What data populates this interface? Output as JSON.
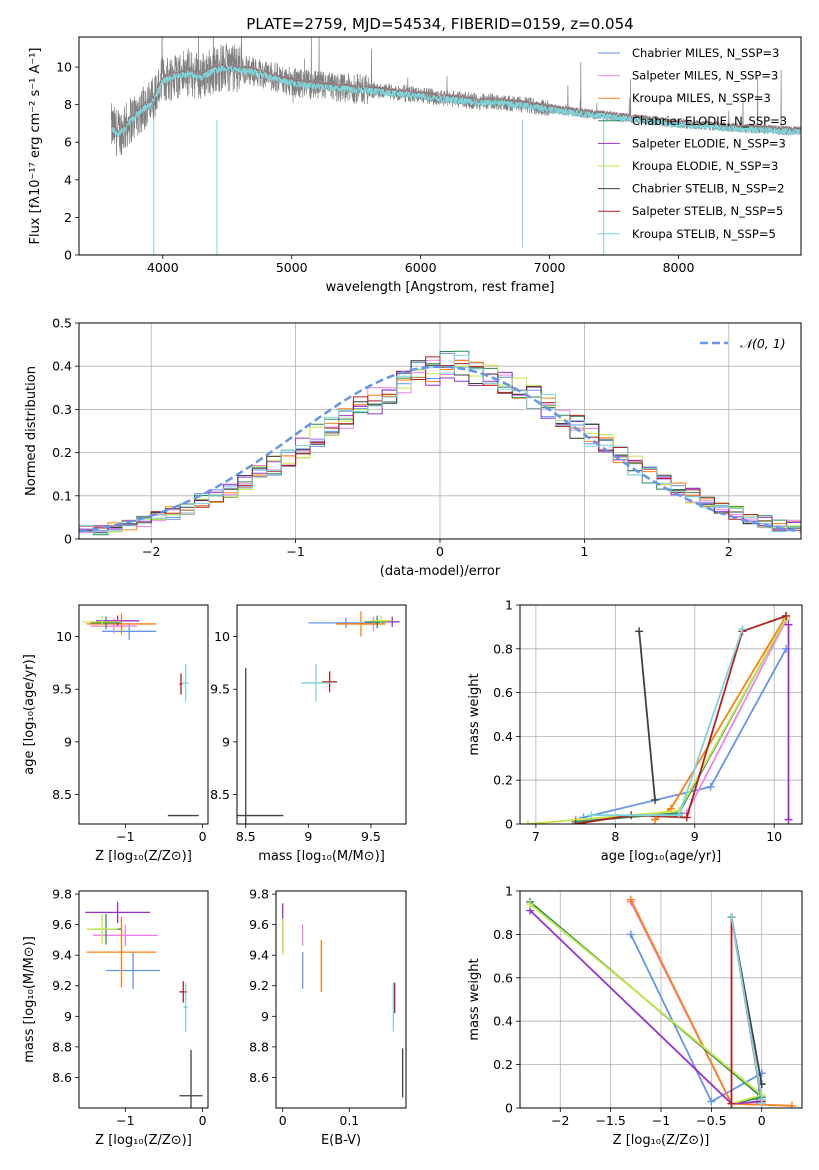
{
  "figure": {
    "title": "PLATE=2759, MJD=54534, FIBERID=0159, z=0.054"
  },
  "chart_data": [
    {
      "id": "spectrum",
      "type": "line",
      "title": "PLATE=2759, MJD=54534, FIBERID=0159, z=0.054",
      "xlabel": "wavelength [Angstrom, rest frame]",
      "ylabel": "Flux [fλ10⁻¹⁷ erg cm⁻² s⁻¹ A⁻¹]",
      "xlim": [
        3350,
        8950
      ],
      "ylim": [
        0,
        11.6
      ],
      "xticks": [
        4000,
        5000,
        6000,
        7000,
        8000
      ],
      "yticks": [
        0,
        2,
        4,
        6,
        8,
        10
      ],
      "legend": "top-right",
      "data_color": "#808080",
      "model_color": "#7fd4dc",
      "continuum": {
        "x": [
          3600,
          3650,
          3700,
          3750,
          3800,
          3850,
          3900,
          3950,
          4000,
          4100,
          4200,
          4300,
          4400,
          4500,
          4600,
          4700,
          4800,
          4900,
          5000,
          5200,
          5400,
          5600,
          5800,
          6000,
          6200,
          6400,
          6600,
          6800,
          7000,
          7200,
          7400,
          7600,
          7800,
          8000,
          8200,
          8400,
          8600,
          8800,
          8950
        ],
        "y": [
          6.8,
          6.5,
          6.7,
          7.2,
          7.5,
          7.9,
          8.0,
          8.6,
          9.3,
          9.6,
          9.7,
          9.5,
          9.9,
          10.0,
          9.9,
          9.8,
          9.6,
          9.4,
          9.2,
          9.0,
          8.9,
          8.8,
          8.65,
          8.5,
          8.35,
          8.2,
          8.15,
          8.0,
          7.8,
          7.6,
          7.45,
          7.3,
          7.15,
          7.0,
          6.9,
          6.8,
          6.7,
          6.65,
          6.6
        ]
      },
      "series": [
        {
          "name": "Chabrier MILES, N_SSP=3",
          "color": "#6495ed"
        },
        {
          "name": "Salpeter MILES, N_SSP=3",
          "color": "#ee82ee"
        },
        {
          "name": "Kroupa MILES, N_SSP=3",
          "color": "#ff7f0e"
        },
        {
          "name": "Chabrier ELODIE, N_SSP=3",
          "color": "#2e8b57"
        },
        {
          "name": "Salpeter ELODIE, N_SSP=3",
          "color": "#9932cc"
        },
        {
          "name": "Kroupa ELODIE, N_SSP=3",
          "color": "#c5e84a"
        },
        {
          "name": "Chabrier STELIB, N_SSP=2",
          "color": "#404040"
        },
        {
          "name": "Salpeter STELIB, N_SSP=5",
          "color": "#b22222"
        },
        {
          "name": "Kroupa STELIB, N_SSP=5",
          "color": "#7fd4dc"
        }
      ]
    },
    {
      "id": "residuals",
      "type": "line",
      "xlabel": "(data-model)/error",
      "ylabel": "Normed distribution",
      "xlim": [
        -2.5,
        2.5
      ],
      "ylim": [
        0,
        0.5
      ],
      "xticks": [
        -2,
        -1,
        0,
        1,
        2
      ],
      "yticks": [
        0.0,
        0.1,
        0.2,
        0.3,
        0.4,
        0.5
      ],
      "grid": true,
      "legend": "top-right",
      "reference": {
        "name": "𝒩(0, 1)",
        "color": "#6495ed",
        "style": "dashed"
      },
      "bin_width": 0.1,
      "bin_start": -2.5,
      "histogram_mean": [
        0.02,
        0.02,
        0.03,
        0.03,
        0.04,
        0.05,
        0.06,
        0.07,
        0.09,
        0.1,
        0.11,
        0.13,
        0.15,
        0.17,
        0.19,
        0.21,
        0.24,
        0.26,
        0.28,
        0.3,
        0.32,
        0.34,
        0.36,
        0.38,
        0.39,
        0.4,
        0.4,
        0.39,
        0.38,
        0.37,
        0.35,
        0.33,
        0.31,
        0.29,
        0.26,
        0.24,
        0.22,
        0.2,
        0.17,
        0.15,
        0.13,
        0.12,
        0.1,
        0.09,
        0.07,
        0.06,
        0.05,
        0.04,
        0.03,
        0.03
      ]
    },
    {
      "id": "age-vs-z",
      "type": "scatter",
      "xlabel": "Z [log₁₀(Z/Z⊙)]",
      "ylabel": "age  [log₁₀(age/yr)]",
      "xlim": [
        -1.6,
        0.07
      ],
      "ylim": [
        8.22,
        10.3
      ],
      "xticks": [
        -1,
        0
      ],
      "yticks": [
        8.5,
        9.0,
        9.5,
        10.0
      ],
      "points": [
        {
          "x": -0.95,
          "y": 10.05,
          "xerr": 0.35,
          "yerr": 0.08,
          "color": "#6495ed"
        },
        {
          "x": -1.15,
          "y": 10.1,
          "xerr": 0.3,
          "yerr": 0.07,
          "color": "#ee82ee"
        },
        {
          "x": -1.05,
          "y": 10.12,
          "xerr": 0.45,
          "yerr": 0.1,
          "color": "#ff7f0e"
        },
        {
          "x": -1.25,
          "y": 10.13,
          "xerr": 0.2,
          "yerr": 0.06,
          "color": "#2e8b57"
        },
        {
          "x": -1.1,
          "y": 10.15,
          "xerr": 0.28,
          "yerr": 0.05,
          "color": "#9932cc"
        },
        {
          "x": -1.3,
          "y": 10.14,
          "xerr": 0.25,
          "yerr": 0.05,
          "color": "#c5e84a"
        },
        {
          "x": -0.25,
          "y": 8.3,
          "xerr": 0.2,
          "yerr": 0.0,
          "color": "#404040"
        },
        {
          "x": -0.28,
          "y": 9.55,
          "xerr": 0.02,
          "yerr": 0.1,
          "color": "#b22222"
        },
        {
          "x": -0.22,
          "y": 9.56,
          "xerr": 0.04,
          "yerr": 0.18,
          "color": "#7fd4dc"
        }
      ]
    },
    {
      "id": "age-vs-mass",
      "type": "scatter",
      "xlabel": "mass [log₁₀(M/M⊙)]",
      "xlim": [
        8.43,
        9.78
      ],
      "ylim": [
        8.22,
        10.3
      ],
      "xticks": [
        8.5,
        9.0,
        9.5
      ],
      "yticks": [
        8.5,
        9.0,
        9.5,
        10.0
      ],
      "points": [
        {
          "x": 9.3,
          "y": 10.13,
          "xerr": 0.3,
          "yerr": 0.05,
          "color": "#6495ed"
        },
        {
          "x": 9.52,
          "y": 10.12,
          "xerr": 0.08,
          "yerr": 0.07,
          "color": "#ee82ee"
        },
        {
          "x": 9.42,
          "y": 10.12,
          "xerr": 0.2,
          "yerr": 0.12,
          "color": "#ff7f0e"
        },
        {
          "x": 9.55,
          "y": 10.14,
          "xerr": 0.1,
          "yerr": 0.06,
          "color": "#2e8b57"
        },
        {
          "x": 9.67,
          "y": 10.14,
          "xerr": 0.06,
          "yerr": 0.05,
          "color": "#9932cc"
        },
        {
          "x": 9.58,
          "y": 10.15,
          "xerr": 0.08,
          "yerr": 0.05,
          "color": "#c5e84a"
        },
        {
          "x": 8.5,
          "y": 8.3,
          "xerr": 0.3,
          "yerr": 1.4,
          "color": "#404040"
        },
        {
          "x": 9.17,
          "y": 9.57,
          "xerr": 0.06,
          "yerr": 0.1,
          "color": "#b22222"
        },
        {
          "x": 9.06,
          "y": 9.56,
          "xerr": 0.12,
          "yerr": 0.18,
          "color": "#7fd4dc"
        }
      ]
    },
    {
      "id": "weight-vs-age",
      "type": "line",
      "xlabel": "age  [log₁₀(age/yr)]",
      "ylabel": "mass weight",
      "xlim": [
        6.8,
        10.35
      ],
      "ylim": [
        0,
        1.0
      ],
      "xticks": [
        7,
        8,
        9,
        10
      ],
      "yticks": [
        0.0,
        0.2,
        0.4,
        0.6,
        0.8,
        1.0
      ],
      "grid": true,
      "series": [
        {
          "color": "#6495ed",
          "x": [
            7.6,
            9.2,
            10.15
          ],
          "y": [
            0.03,
            0.17,
            0.8
          ]
        },
        {
          "color": "#ee82ee",
          "x": [
            7.5,
            8.9,
            10.15
          ],
          "y": [
            0.02,
            0.05,
            0.93
          ]
        },
        {
          "color": "#ff7f0e",
          "x": [
            8.5,
            8.7,
            10.15
          ],
          "y": [
            0.02,
            0.07,
            0.95
          ]
        },
        {
          "color": "#2e8b57",
          "x": [
            7.5,
            8.8,
            10.15
          ],
          "y": [
            0.01,
            0.05,
            0.94
          ]
        },
        {
          "color": "#9932cc",
          "x": [
            10.18,
            10.18
          ],
          "y": [
            0.02,
            0.91
          ]
        },
        {
          "color": "#c5e84a",
          "x": [
            6.9,
            8.8,
            10.15
          ],
          "y": [
            0.0,
            0.06,
            0.94
          ]
        },
        {
          "color": "#404040",
          "x": [
            8.3,
            8.5
          ],
          "y": [
            0.88,
            0.11
          ]
        },
        {
          "color": "#b22222",
          "x": [
            7.5,
            8.2,
            8.9,
            9.6,
            10.15
          ],
          "y": [
            0.0,
            0.04,
            0.03,
            0.88,
            0.95
          ]
        },
        {
          "color": "#7fd4dc",
          "x": [
            7.7,
            8.8,
            9.6
          ],
          "y": [
            0.04,
            0.04,
            0.89
          ]
        }
      ]
    },
    {
      "id": "mass-vs-z",
      "type": "scatter",
      "xlabel": "Z [log₁₀(Z/Z⊙)]",
      "ylabel": "mass [log₁₀(M/M⊙)]",
      "xlim": [
        -1.6,
        0.07
      ],
      "ylim": [
        8.4,
        9.82
      ],
      "xticks": [
        -1,
        0
      ],
      "yticks": [
        8.6,
        8.8,
        9.0,
        9.2,
        9.4,
        9.6,
        9.8
      ],
      "points": [
        {
          "x": -0.9,
          "y": 9.3,
          "xerr": 0.35,
          "yerr": 0.12,
          "color": "#6495ed"
        },
        {
          "x": -1.0,
          "y": 9.53,
          "xerr": 0.42,
          "yerr": 0.07,
          "color": "#ee82ee"
        },
        {
          "x": -1.05,
          "y": 9.42,
          "xerr": 0.45,
          "yerr": 0.23,
          "color": "#ff7f0e"
        },
        {
          "x": -1.25,
          "y": 9.57,
          "xerr": 0.2,
          "yerr": 0.1,
          "color": "#2e8b57"
        },
        {
          "x": -1.1,
          "y": 9.68,
          "xerr": 0.42,
          "yerr": 0.07,
          "color": "#9932cc"
        },
        {
          "x": -1.3,
          "y": 9.57,
          "xerr": 0.2,
          "yerr": 0.1,
          "color": "#c5e84a"
        },
        {
          "x": -0.15,
          "y": 8.48,
          "xerr": 0.15,
          "yerr": 0.3,
          "color": "#404040"
        },
        {
          "x": -0.25,
          "y": 9.16,
          "xerr": 0.05,
          "yerr": 0.07,
          "color": "#b22222"
        },
        {
          "x": -0.22,
          "y": 9.06,
          "xerr": 0.03,
          "yerr": 0.16,
          "color": "#7fd4dc"
        }
      ]
    },
    {
      "id": "mass-vs-ebv",
      "type": "scatter",
      "xlabel": "E(B-V)",
      "xlim": [
        -0.01,
        0.185
      ],
      "ylim": [
        8.4,
        9.82
      ],
      "xticks": [
        0.0,
        0.1
      ],
      "yticks": [
        8.6,
        8.8,
        9.0,
        9.2,
        9.4,
        9.6,
        9.8
      ],
      "points": [
        {
          "x": 0.03,
          "y": 9.3,
          "xerr": 0.0,
          "yerr": 0.12,
          "color": "#6495ed"
        },
        {
          "x": 0.03,
          "y": 9.53,
          "xerr": 0.0,
          "yerr": 0.07,
          "color": "#ee82ee"
        },
        {
          "x": 0.058,
          "y": 9.33,
          "xerr": 0.0,
          "yerr": 0.17,
          "color": "#ff7f0e"
        },
        {
          "x": 0.0,
          "y": 9.52,
          "xerr": 0.0,
          "yerr": 0.1,
          "color": "#2e8b57"
        },
        {
          "x": 0.0,
          "y": 9.67,
          "xerr": 0.0,
          "yerr": 0.07,
          "color": "#9932cc"
        },
        {
          "x": 0.0,
          "y": 9.52,
          "xerr": 0.0,
          "yerr": 0.12,
          "color": "#c5e84a"
        },
        {
          "x": 0.18,
          "y": 8.63,
          "xerr": 0.0,
          "yerr": 0.16,
          "color": "#404040"
        },
        {
          "x": 0.168,
          "y": 9.12,
          "xerr": 0.0,
          "yerr": 0.1,
          "color": "#b22222"
        },
        {
          "x": 0.166,
          "y": 9.06,
          "xerr": 0.0,
          "yerr": 0.16,
          "color": "#7fd4dc"
        }
      ]
    },
    {
      "id": "weight-vs-z",
      "type": "line",
      "xlabel": "Z [log₁₀(Z/Z⊙)]",
      "ylabel": "mass weight",
      "xlim": [
        -2.4,
        0.4
      ],
      "ylim": [
        0,
        1.0
      ],
      "xticks": [
        -2.0,
        -1.5,
        -1.0,
        -0.5,
        0.0
      ],
      "yticks": [
        0.0,
        0.2,
        0.4,
        0.6,
        0.8,
        1.0
      ],
      "grid": true,
      "series": [
        {
          "color": "#6495ed",
          "x": [
            -1.3,
            -0.5,
            0.0,
            -0.05
          ],
          "y": [
            0.8,
            0.03,
            0.16,
            0.03
          ]
        },
        {
          "color": "#ee82ee",
          "x": [
            -1.3,
            -0.3,
            0.0
          ],
          "y": [
            0.95,
            0.02,
            0.05
          ]
        },
        {
          "color": "#ff7f0e",
          "x": [
            -1.3,
            -0.3,
            0.3
          ],
          "y": [
            0.96,
            0.02,
            0.01
          ]
        },
        {
          "color": "#2e8b57",
          "x": [
            -2.3,
            0.0,
            -0.3
          ],
          "y": [
            0.95,
            0.05,
            0.02
          ]
        },
        {
          "color": "#9932cc",
          "x": [
            -2.3,
            -0.3,
            0.0
          ],
          "y": [
            0.91,
            0.02,
            0.03
          ]
        },
        {
          "color": "#c5e84a",
          "x": [
            -2.3,
            0.0,
            -0.3
          ],
          "y": [
            0.94,
            0.06,
            0.02
          ]
        },
        {
          "color": "#404040",
          "x": [
            -0.3,
            0.0
          ],
          "y": [
            0.88,
            0.11
          ]
        },
        {
          "color": "#b22222",
          "x": [
            -0.3,
            -0.3,
            0.0
          ],
          "y": [
            0.02,
            0.88,
            0.03
          ]
        },
        {
          "color": "#7fd4dc",
          "x": [
            -0.3,
            0.0,
            0.0
          ],
          "y": [
            0.88,
            0.04,
            0.02
          ]
        }
      ]
    }
  ]
}
